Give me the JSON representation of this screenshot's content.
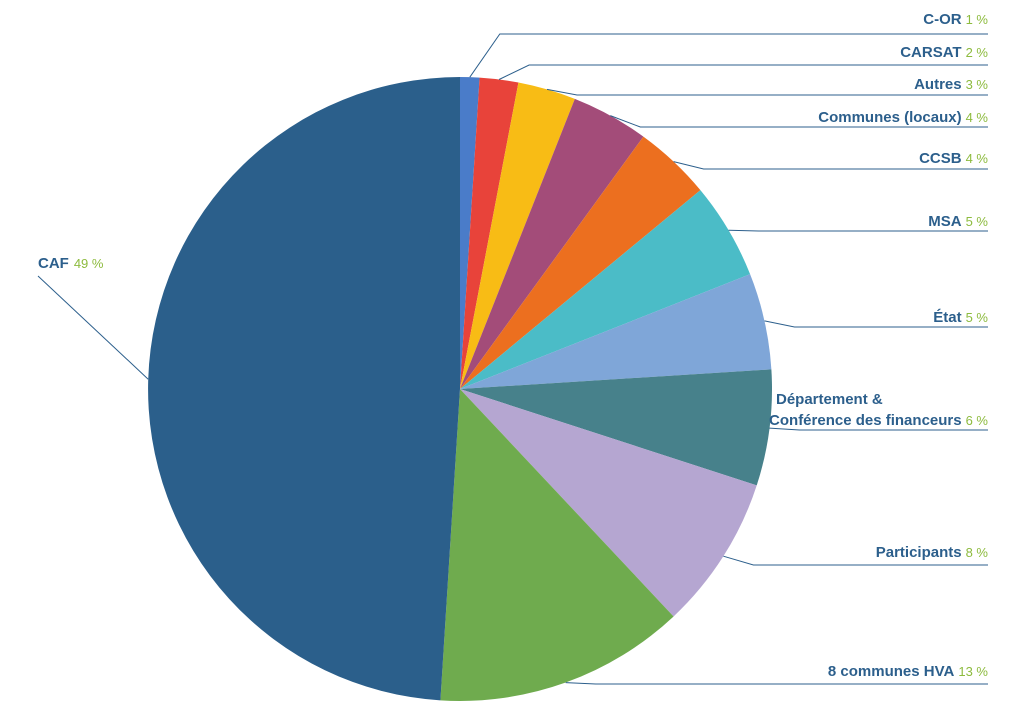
{
  "chart_data": {
    "type": "pie",
    "title": "",
    "slices": [
      {
        "label": "C-OR",
        "pct_text": "1 %",
        "value": 1,
        "color": "#4a7cc9"
      },
      {
        "label": "CARSAT",
        "pct_text": "2 %",
        "value": 2,
        "color": "#e8433a"
      },
      {
        "label": "Autres",
        "pct_text": "3 %",
        "value": 3,
        "color": "#f8bc15"
      },
      {
        "label": "Communes (locaux)",
        "pct_text": "4 %",
        "value": 4,
        "color": "#a34c79"
      },
      {
        "label": "CCSB",
        "pct_text": "4 %",
        "value": 4,
        "color": "#ec6f1f"
      },
      {
        "label": "MSA",
        "pct_text": "5 %",
        "value": 5,
        "color": "#4bbcc7"
      },
      {
        "label": "État",
        "pct_text": "5 %",
        "value": 5,
        "color": "#7fa6d8"
      },
      {
        "label": [
          "Département &",
          "Conférence des financeurs"
        ],
        "pct_text": "6 %",
        "value": 6,
        "color": "#47818b"
      },
      {
        "label": "Participants",
        "pct_text": "8 %",
        "value": 8,
        "color": "#b5a6d1"
      },
      {
        "label": "8 communes HVA",
        "pct_text": "13 %",
        "value": 13,
        "color": "#6fab4e"
      },
      {
        "label": "CAF",
        "pct_text": "49 %",
        "value": 49,
        "color": "#2b5f8b"
      }
    ],
    "legend": "callout labels with leader lines (right side; CAF on left)"
  }
}
